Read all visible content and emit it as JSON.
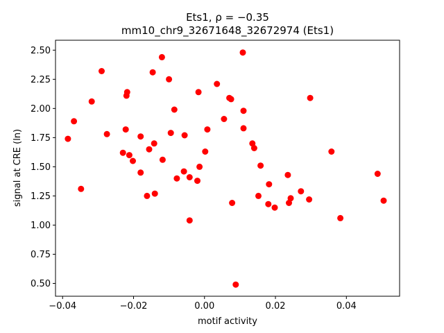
{
  "chart_data": {
    "type": "scatter",
    "title_line1": "Ets1, ρ = −0.35",
    "title_line2": "mm10_chr9_32671648_32672974 (Ets1)",
    "xlabel": "motif activity",
    "ylabel": "signal at CRE (ln)",
    "xlim": [
      -0.042,
      0.055
    ],
    "ylim": [
      0.39,
      2.585
    ],
    "xticks": [
      -0.04,
      -0.02,
      0.0,
      0.02,
      0.04
    ],
    "xtick_labels": [
      "−0.04",
      "−0.02",
      "0.00",
      "0.02",
      "0.04"
    ],
    "yticks": [
      0.5,
      0.75,
      1.0,
      1.25,
      1.5,
      1.75,
      2.0,
      2.25,
      2.5
    ],
    "ytick_labels": [
      "0.50",
      "0.75",
      "1.00",
      "1.25",
      "1.50",
      "1.75",
      "2.00",
      "2.25",
      "2.50"
    ],
    "grid": false,
    "marker_color": "#ff0000",
    "x": [
      -0.0385,
      -0.0368,
      -0.0348,
      -0.0318,
      -0.029,
      -0.0275,
      -0.023,
      -0.0222,
      -0.022,
      -0.0218,
      -0.0212,
      -0.0202,
      -0.018,
      -0.018,
      -0.0162,
      -0.0156,
      -0.0146,
      -0.0142,
      -0.014,
      -0.012,
      -0.0118,
      -0.01,
      -0.0095,
      -0.0085,
      -0.0078,
      -0.0058,
      -0.0056,
      -0.0042,
      -0.0042,
      -0.002,
      -0.0017,
      -0.0014,
      0.0002,
      0.0008,
      0.0035,
      0.0055,
      0.007,
      0.0075,
      0.0078,
      0.0088,
      0.0108,
      0.011,
      0.011,
      0.0135,
      0.014,
      0.0152,
      0.0158,
      0.018,
      0.0182,
      0.0198,
      0.0235,
      0.0238,
      0.0243,
      0.0272,
      0.0295,
      0.0298,
      0.0358,
      0.0383,
      0.0488,
      0.0505
    ],
    "y": [
      1.74,
      1.89,
      1.31,
      2.06,
      2.32,
      1.78,
      1.62,
      1.82,
      2.11,
      2.14,
      1.6,
      1.55,
      1.76,
      1.45,
      1.25,
      1.65,
      2.31,
      1.7,
      1.27,
      2.44,
      1.56,
      2.25,
      1.79,
      1.99,
      1.4,
      1.46,
      1.77,
      1.04,
      1.41,
      1.38,
      2.14,
      1.5,
      1.63,
      1.82,
      2.21,
      1.91,
      2.09,
      2.08,
      1.19,
      0.49,
      2.48,
      1.98,
      1.83,
      1.7,
      1.66,
      1.25,
      1.51,
      1.18,
      1.35,
      1.15,
      1.43,
      1.19,
      1.23,
      1.29,
      1.22,
      2.09,
      1.63,
      1.06,
      1.44,
      1.21
    ]
  }
}
